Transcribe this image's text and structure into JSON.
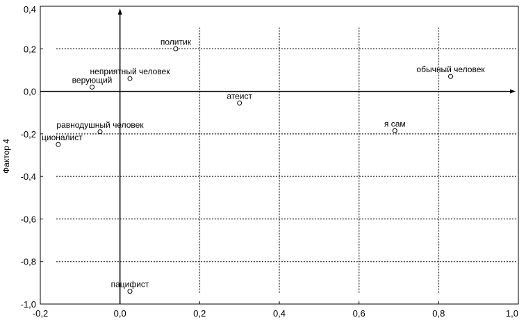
{
  "chart_data": {
    "type": "scatter",
    "title": "",
    "xlabel": "",
    "ylabel": "Фактор 4",
    "xlim": [
      -0.2,
      1.0
    ],
    "ylim": [
      -1.0,
      0.4
    ],
    "x_ticks": [
      -0.2,
      0.0,
      0.2,
      0.4,
      0.6,
      0.8,
      1.0
    ],
    "y_ticks": [
      0.4,
      0.2,
      0.0,
      -0.2,
      -0.4,
      -0.6,
      -0.8,
      -1.0
    ],
    "x_tick_labels": [
      "-0,2",
      "0,0",
      "0,2",
      "0,4",
      "0,6",
      "0,8",
      "1,0"
    ],
    "y_tick_labels": [
      "0,4",
      "0,2",
      "0,0",
      "-0,2",
      "-0,4",
      "-0,6",
      "-0,8",
      "-1,0"
    ],
    "grid": true,
    "points": [
      {
        "label": "политик",
        "x": 0.14,
        "y": 0.2
      },
      {
        "label": "неприятный человек",
        "x": 0.025,
        "y": 0.06
      },
      {
        "label": "верующий",
        "x": -0.07,
        "y": 0.02
      },
      {
        "label": "обычный человек",
        "x": 0.83,
        "y": 0.07
      },
      {
        "label": "атеист",
        "x": 0.3,
        "y": -0.055
      },
      {
        "label": "равнодушный человек",
        "x": -0.05,
        "y": -0.19
      },
      {
        "label": "ционалист",
        "x": -0.155,
        "y": -0.25
      },
      {
        "label": "я сам",
        "x": 0.69,
        "y": -0.185
      },
      {
        "label": "пацифист",
        "x": 0.025,
        "y": -0.94
      }
    ]
  }
}
